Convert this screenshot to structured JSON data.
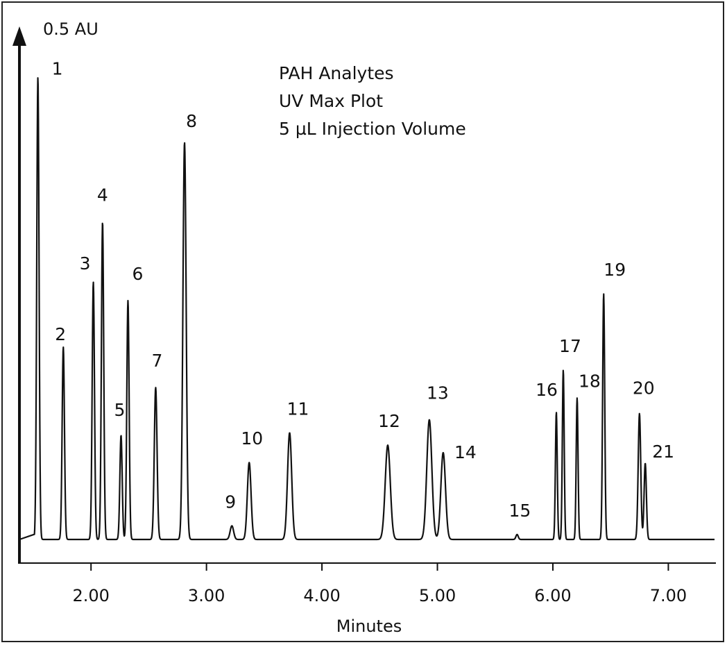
{
  "chart_data": {
    "type": "line",
    "xlabel": "Minutes",
    "ylabel": "0.5 AU",
    "xlim": [
      1.38,
      7.4
    ],
    "x_ticks": [
      {
        "value": 2.0,
        "label": "2.00"
      },
      {
        "value": 3.0,
        "label": "3.00"
      },
      {
        "value": 4.0,
        "label": "4.00"
      },
      {
        "value": 5.0,
        "label": "5.00"
      },
      {
        "value": 6.0,
        "label": "6.00"
      },
      {
        "value": 7.0,
        "label": "7.00"
      }
    ],
    "annotations": [
      "PAH Analytes",
      "UV Max Plot",
      "5  µL Injection Volume"
    ],
    "grid": false,
    "y_units": "AU",
    "y_scale_bar_value": 0.5,
    "peaks": [
      {
        "label": "1",
        "time": 1.54,
        "height": 0.745,
        "width": 0.01
      },
      {
        "label": "2",
        "time": 1.76,
        "height": 0.31,
        "width": 0.01
      },
      {
        "label": "3",
        "time": 2.02,
        "height": 0.415,
        "width": 0.01
      },
      {
        "label": "4",
        "time": 2.1,
        "height": 0.512,
        "width": 0.01
      },
      {
        "label": "5",
        "time": 2.26,
        "height": 0.168,
        "width": 0.01
      },
      {
        "label": "6",
        "time": 2.32,
        "height": 0.385,
        "width": 0.01
      },
      {
        "label": "7",
        "time": 2.56,
        "height": 0.245,
        "width": 0.012
      },
      {
        "label": "8",
        "time": 2.81,
        "height": 0.64,
        "width": 0.014
      },
      {
        "label": "9",
        "time": 3.22,
        "height": 0.022,
        "width": 0.015
      },
      {
        "label": "10",
        "time": 3.37,
        "height": 0.124,
        "width": 0.016
      },
      {
        "label": "11",
        "time": 3.72,
        "height": 0.172,
        "width": 0.018
      },
      {
        "label": "12",
        "time": 4.57,
        "height": 0.152,
        "width": 0.022
      },
      {
        "label": "13",
        "time": 4.93,
        "height": 0.193,
        "width": 0.022
      },
      {
        "label": "14",
        "time": 5.05,
        "height": 0.14,
        "width": 0.02
      },
      {
        "label": "15",
        "time": 5.69,
        "height": 0.008,
        "width": 0.01
      },
      {
        "label": "16",
        "time": 6.03,
        "height": 0.205,
        "width": 0.008
      },
      {
        "label": "17",
        "time": 6.09,
        "height": 0.273,
        "width": 0.008
      },
      {
        "label": "18",
        "time": 6.21,
        "height": 0.228,
        "width": 0.008
      },
      {
        "label": "19",
        "time": 6.44,
        "height": 0.396,
        "width": 0.009
      },
      {
        "label": "20",
        "time": 6.75,
        "height": 0.203,
        "width": 0.011
      },
      {
        "label": "21",
        "time": 6.8,
        "height": 0.123,
        "width": 0.01
      }
    ],
    "y_max": 0.78
  }
}
